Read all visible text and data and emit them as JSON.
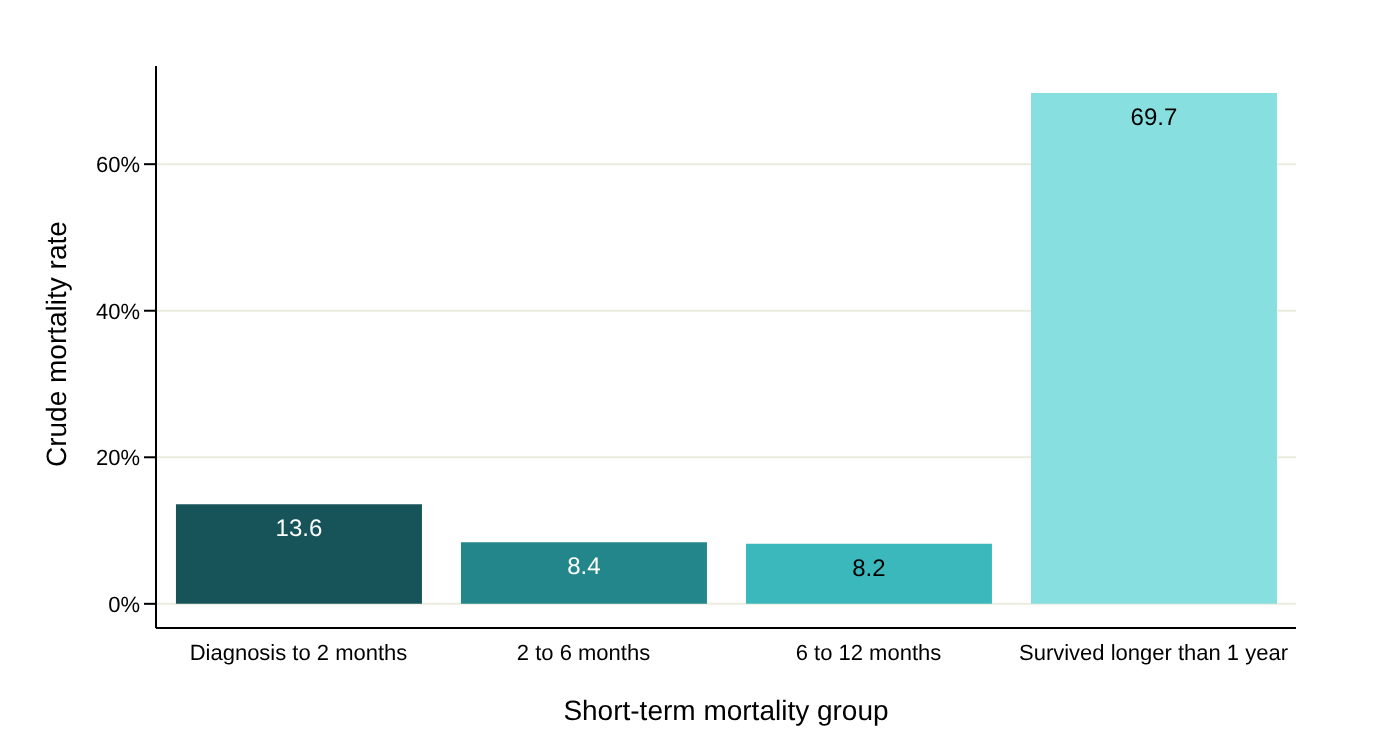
{
  "chart_data": {
    "type": "bar",
    "xlabel": "Short-term mortality group",
    "ylabel": "Crude mortality rate",
    "categories": [
      "Diagnosis to 2 months",
      "2 to 6 months",
      "6 to 12 months",
      "Survived longer than 1 year"
    ],
    "values": [
      13.6,
      8.4,
      8.2,
      69.7
    ],
    "colors": [
      "#17545a",
      "#23868a",
      "#3bb8bb",
      "#88dfe0"
    ],
    "ylim": [
      -3.3,
      73.4
    ],
    "yticks": [
      {
        "value": 0,
        "label": "0%"
      },
      {
        "value": 20,
        "label": "20%"
      },
      {
        "value": 40,
        "label": "40%"
      },
      {
        "value": 60,
        "label": "60%"
      }
    ],
    "grid": "y",
    "data_labels": true
  }
}
